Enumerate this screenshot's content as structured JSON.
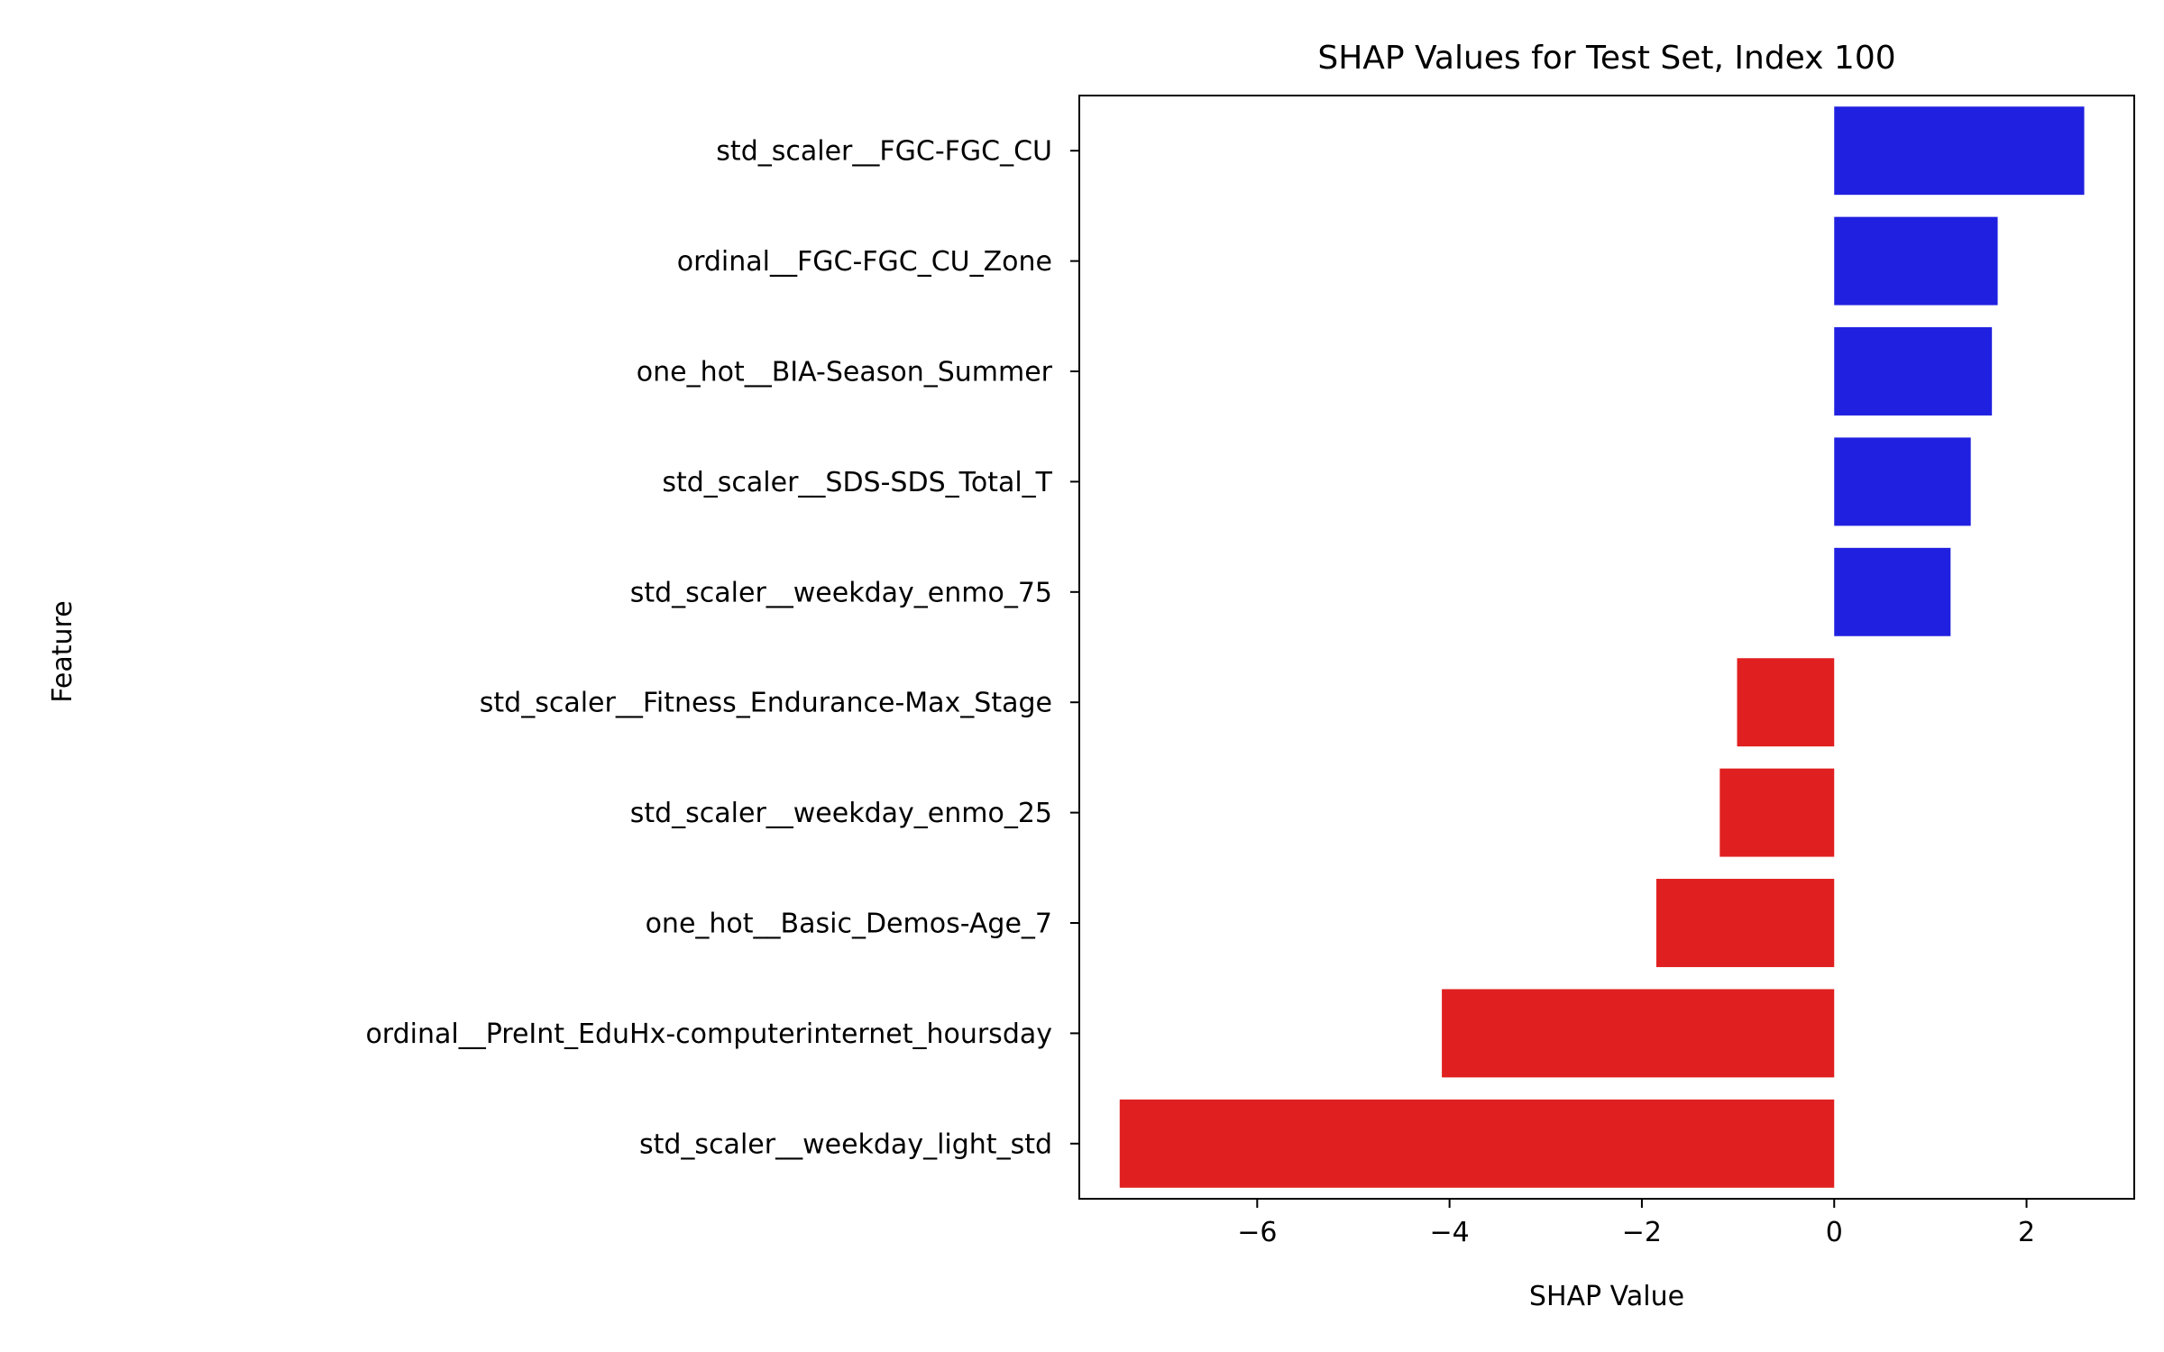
{
  "chart_data": {
    "type": "bar",
    "orientation": "horizontal",
    "title": "SHAP Values for Test Set, Index 100",
    "xlabel": "SHAP Value",
    "ylabel": "Feature",
    "xlim": [
      -7.85,
      3.12
    ],
    "xticks": [
      -6,
      -4,
      -2,
      0,
      2
    ],
    "xtick_labels": [
      "−6",
      "−4",
      "−2",
      "0",
      "2"
    ],
    "grid": false,
    "legend": "none",
    "positive_color": "#2020e0",
    "negative_color": "#e02020",
    "categories": [
      "std_scaler__FGC-FGC_CU",
      "ordinal__FGC-FGC_CU_Zone",
      "one_hot__BIA-Season_Summer",
      "std_scaler__SDS-SDS_Total_T",
      "std_scaler__weekday_enmo_75",
      "std_scaler__Fitness_Endurance-Max_Stage",
      "std_scaler__weekday_enmo_25",
      "one_hot__Basic_Demos-Age_7",
      "ordinal__PreInt_EduHx-computerinternet_hoursday",
      "std_scaler__weekday_light_std"
    ],
    "values": [
      2.6,
      1.7,
      1.64,
      1.42,
      1.21,
      -1.01,
      -1.19,
      -1.85,
      -4.08,
      -7.43
    ]
  }
}
